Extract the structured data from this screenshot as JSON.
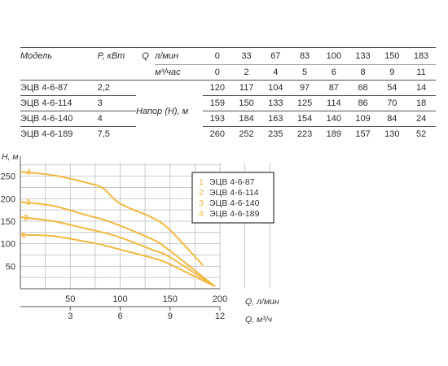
{
  "table": {
    "col_model": "Модель",
    "col_power": "P, кВт",
    "q_symbol": "Q",
    "unit_lmin": "л/мин",
    "unit_m3h": "м³/час",
    "flow_lmin": [
      "0",
      "33",
      "67",
      "83",
      "100",
      "133",
      "150",
      "183"
    ],
    "flow_m3h": [
      "0",
      "2",
      "4",
      "5",
      "6",
      "8",
      "9",
      "11"
    ],
    "head_label": "Напор (H), м",
    "rows": [
      {
        "model": "ЭЦВ 4-6-87",
        "power": "2,2",
        "heads": [
          "120",
          "117",
          "104",
          "97",
          "87",
          "68",
          "54",
          "14"
        ]
      },
      {
        "model": "ЭЦВ 4-6-114",
        "power": "3",
        "heads": [
          "159",
          "150",
          "133",
          "125",
          "114",
          "86",
          "70",
          "18"
        ]
      },
      {
        "model": "ЭЦВ 4-6-140",
        "power": "4",
        "heads": [
          "193",
          "184",
          "163",
          "154",
          "140",
          "109",
          "84",
          "24"
        ]
      },
      {
        "model": "ЭЦВ 4-6-189",
        "power": "7,5",
        "heads": [
          "260",
          "252",
          "235",
          "223",
          "189",
          "157",
          "130",
          "52"
        ]
      }
    ]
  },
  "chart_data": {
    "type": "line",
    "ylabel": "H, м",
    "xlabel": "Q, л/мин",
    "x2label": "Q, м³/ч",
    "xlim": [
      0,
      200
    ],
    "ylim": [
      0,
      280
    ],
    "yticks": [
      50,
      100,
      150,
      200,
      250
    ],
    "xticks": [
      50,
      100,
      150,
      200
    ],
    "x2ticks": [
      3,
      6,
      9,
      12
    ],
    "grid": true,
    "curve_color": "#f0b93f",
    "legend_position": "right",
    "series": [
      {
        "id": "1",
        "name": "ЭЦВ 4-6-87",
        "x": [
          0,
          33,
          67,
          83,
          100,
          133,
          150,
          195
        ],
        "y": [
          120,
          117,
          104,
          97,
          87,
          68,
          54,
          5
        ]
      },
      {
        "id": "2",
        "name": "ЭЦВ 4-6-114",
        "x": [
          0,
          33,
          67,
          83,
          100,
          133,
          150,
          195
        ],
        "y": [
          159,
          150,
          133,
          125,
          114,
          86,
          70,
          5
        ]
      },
      {
        "id": "3",
        "name": "ЭЦВ 4-6-140",
        "x": [
          0,
          33,
          67,
          83,
          100,
          133,
          150,
          195
        ],
        "y": [
          193,
          184,
          163,
          154,
          140,
          109,
          84,
          5
        ]
      },
      {
        "id": "4",
        "name": "ЭЦВ 4-6-189",
        "x": [
          0,
          33,
          67,
          83,
          100,
          133,
          150,
          183
        ],
        "y": [
          260,
          252,
          235,
          223,
          189,
          157,
          130,
          52
        ]
      }
    ]
  }
}
